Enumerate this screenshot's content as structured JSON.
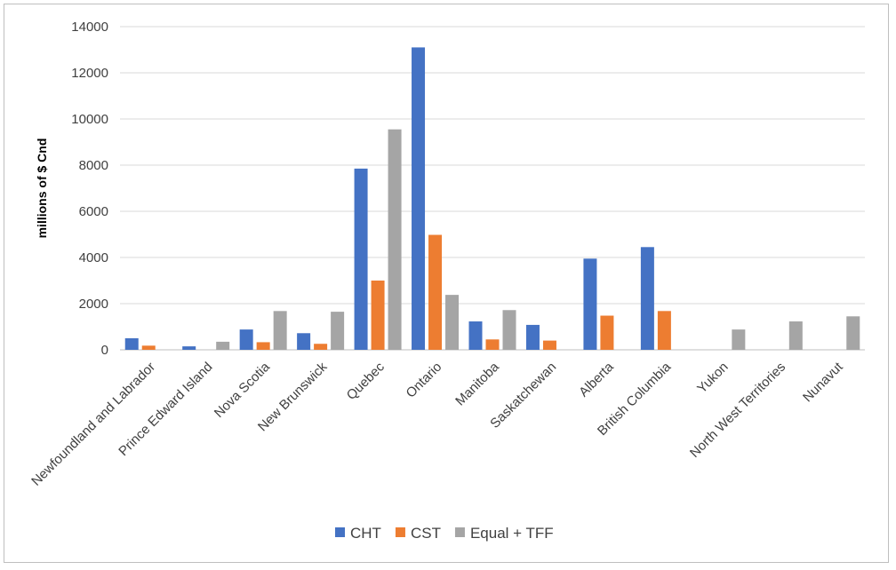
{
  "chart_data": {
    "type": "bar",
    "title": "",
    "xlabel": "",
    "ylabel": "millions of $ Cnd",
    "ylim": [
      0,
      14000
    ],
    "yticks": [
      0,
      2000,
      4000,
      6000,
      8000,
      10000,
      12000,
      14000
    ],
    "grid": true,
    "legend_position": "bottom",
    "categories": [
      "Newfoundland and Labrador",
      "Prince Edward Island",
      "Nova Scotia",
      "New Brunswick",
      "Quebec",
      "Ontario",
      "Manitoba",
      "Saskatchewan",
      "Alberta",
      "British Columbia",
      "Yukon",
      "North West Territories",
      "Nunavut"
    ],
    "series": [
      {
        "name": "CHT",
        "color": "#4472C4",
        "values": [
          500,
          150,
          880,
          720,
          7850,
          13100,
          1230,
          1080,
          3950,
          4450,
          0,
          0,
          0
        ]
      },
      {
        "name": "CST",
        "color": "#ED7D31",
        "values": [
          180,
          0,
          330,
          260,
          3000,
          4980,
          450,
          400,
          1480,
          1680,
          0,
          0,
          0
        ]
      },
      {
        "name": "Equal + TFF",
        "color": "#A5A5A5",
        "values": [
          0,
          350,
          1680,
          1650,
          9550,
          2380,
          1720,
          0,
          0,
          0,
          880,
          1230,
          1450
        ]
      }
    ]
  }
}
